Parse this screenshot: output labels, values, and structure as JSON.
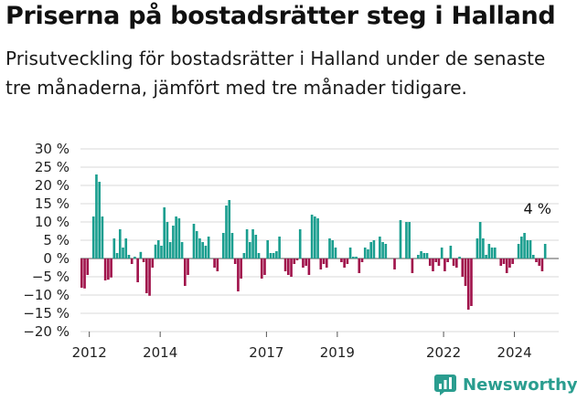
{
  "title": "Priserna på bostadsrätter steg i Halland",
  "subtitle": "Prisutveckling för bostadsrätter i Halland under de senaste tre månaderna, jämfört med tre månader tidigare.",
  "brand": "Newsworthy",
  "colors": {
    "positive": "#1a9e8f",
    "negative": "#a0124b",
    "brand": "#2a9d8f"
  },
  "chart_data": {
    "type": "bar",
    "title": "Priserna på bostadsrätter steg i Halland",
    "xlabel": "",
    "ylabel": "",
    "ylim": [
      -20,
      30
    ],
    "yticks": [
      30,
      25,
      20,
      15,
      10,
      5,
      0,
      -5,
      -10,
      -15,
      -20
    ],
    "ytick_labels": [
      "30 %",
      "25 %",
      "20 %",
      "15 %",
      "10 %",
      "5 %",
      "0 %",
      "−5 %",
      "−10 %",
      "−15 %",
      "−20 %"
    ],
    "xlim": [
      2011.75,
      2025.25
    ],
    "xticks": [
      2012,
      2014,
      2017,
      2019,
      2022,
      2024
    ],
    "xtick_labels": [
      "2012",
      "2014",
      "2017",
      "2019",
      "2022",
      "2024"
    ],
    "annotation": {
      "text": "4 %",
      "x": 2024.7,
      "y": 4
    },
    "series": [
      {
        "name": "Prisutveckling",
        "start": 2011.75,
        "step": 0.0833333,
        "values": [
          -8,
          -8.2,
          -4.5,
          0,
          11.5,
          23,
          21,
          11.5,
          -6,
          -5.8,
          -5.2,
          5.5,
          1.5,
          8,
          3,
          5.5,
          1,
          -1.5,
          0.5,
          -6.5,
          1.8,
          -1,
          -9.5,
          -10.2,
          -2.5,
          3.8,
          5,
          3.5,
          14,
          10,
          4.5,
          9,
          11.5,
          11,
          4.5,
          -7.5,
          -4.5,
          0,
          9.5,
          7.5,
          5.5,
          4.5,
          3.5,
          6,
          0,
          -2.5,
          -3.5,
          0,
          7,
          14.5,
          16,
          7,
          -1.5,
          -9,
          -5.5,
          1.5,
          8,
          4.5,
          8,
          6.5,
          1.5,
          -5.5,
          -4.5,
          5,
          1.5,
          1.5,
          2,
          6,
          0,
          -3.5,
          -4.5,
          -5,
          -1.5,
          -0.5,
          8,
          -2.5,
          -2,
          -4.5,
          12,
          11.5,
          11,
          -3,
          -1.5,
          -2.5,
          5.5,
          5,
          3,
          0,
          -1,
          -2.5,
          -1.5,
          3,
          0.5,
          0.5,
          -4,
          -1,
          3,
          2.5,
          4.5,
          5,
          0,
          6,
          4.5,
          4,
          0,
          0,
          -3,
          0,
          10.5,
          0,
          10,
          10,
          -4,
          0,
          1,
          2,
          1.5,
          1.5,
          -2,
          -3.5,
          -1,
          -2,
          3,
          -3.5,
          -1,
          3.5,
          -2,
          -2.5,
          0.5,
          -5,
          -7.5,
          -14,
          -13,
          0,
          5.5,
          10,
          5.5,
          1,
          4,
          3,
          3,
          0,
          -2,
          -1.5,
          -4,
          -2.5,
          -1.5,
          0,
          4,
          6,
          7,
          5,
          5,
          1,
          -1,
          -2,
          -3.5,
          4
        ]
      }
    ]
  }
}
